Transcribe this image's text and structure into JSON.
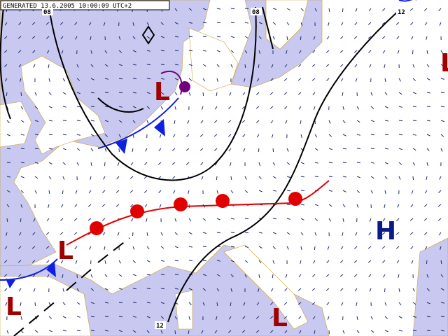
{
  "header": {
    "generated": "GENERATED 13.6.2005 10:00:09 UTC+2"
  },
  "isobar_labels": [
    "08",
    "08",
    "12",
    "12"
  ],
  "pressure_centers": [
    {
      "label": "L"
    },
    {
      "label": "L"
    },
    {
      "label": "L"
    },
    {
      "label": "L"
    },
    {
      "label": "H"
    },
    {
      "label": "L"
    }
  ]
}
